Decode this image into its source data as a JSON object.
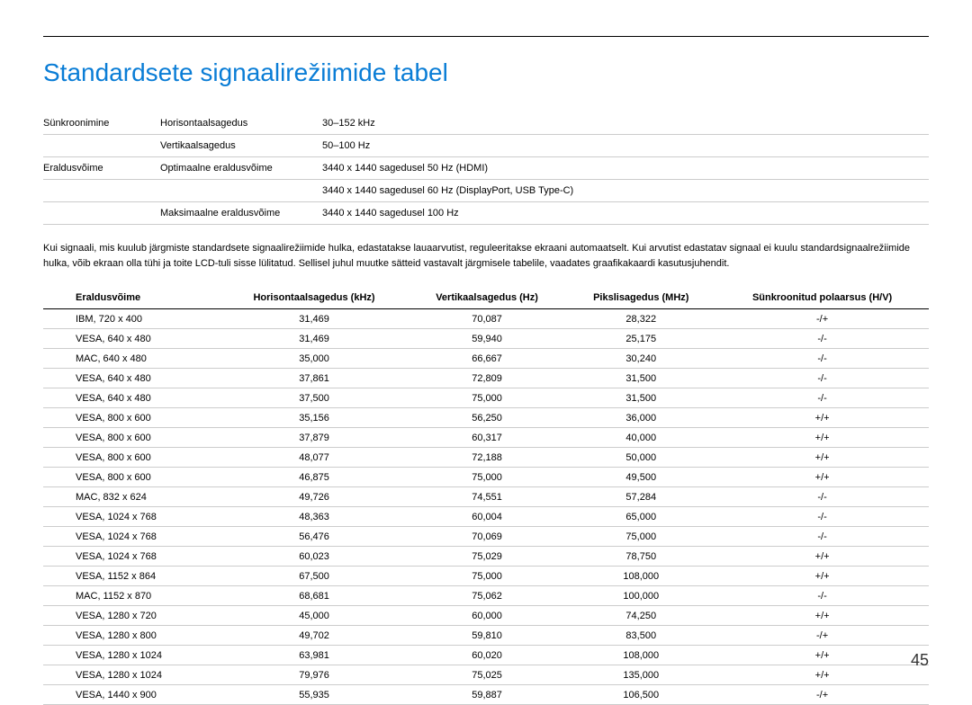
{
  "title": "Standardsete signaalirežiimide tabel",
  "spec": {
    "rows": [
      {
        "c1": "Sünkroonimine",
        "c2": "Horisontaalsagedus",
        "c3": "30–152 kHz"
      },
      {
        "c1": "",
        "c2": "Vertikaalsagedus",
        "c3": "50–100 Hz"
      },
      {
        "c1": "Eraldusvõime",
        "c2": "Optimaalne eraldusvõime",
        "c3": "3440 x 1440 sagedusel 50 Hz (HDMI)"
      },
      {
        "c1": "",
        "c2": "",
        "c3": "3440 x 1440 sagedusel 60 Hz (DisplayPort, USB Type-C)"
      },
      {
        "c1": "",
        "c2": "Maksimaalne eraldusvõime",
        "c3": "3440 x 1440 sagedusel 100 Hz"
      }
    ]
  },
  "note": "Kui signaali, mis kuulub järgmiste standardsete signaalirežiimide hulka, edastatakse lauaarvutist, reguleeritakse ekraani automaatselt. Kui arvutist edastatav signaal ei kuulu standardsignaalrežiimide hulka, võib ekraan olla tühi ja toite LCD-tuli sisse lülitatud. Sellisel juhul muutke sätteid vastavalt järgmisele tabelile, vaadates graafikakaardi kasutusjuhendit.",
  "table": {
    "headers": [
      "Eraldusvõime",
      "Horisontaalsagedus (kHz)",
      "Vertikaalsagedus (Hz)",
      "Pikslisagedus (MHz)",
      "Sünkroonitud polaarsus (H/V)"
    ],
    "rows": [
      [
        "IBM, 720 x 400",
        "31,469",
        "70,087",
        "28,322",
        "-/+"
      ],
      [
        "VESA, 640 x 480",
        "31,469",
        "59,940",
        "25,175",
        "-/-"
      ],
      [
        "MAC, 640 x 480",
        "35,000",
        "66,667",
        "30,240",
        "-/-"
      ],
      [
        "VESA, 640 x 480",
        "37,861",
        "72,809",
        "31,500",
        "-/-"
      ],
      [
        "VESA, 640 x 480",
        "37,500",
        "75,000",
        "31,500",
        "-/-"
      ],
      [
        "VESA, 800 x 600",
        "35,156",
        "56,250",
        "36,000",
        "+/+"
      ],
      [
        "VESA, 800 x 600",
        "37,879",
        "60,317",
        "40,000",
        "+/+"
      ],
      [
        "VESA, 800 x 600",
        "48,077",
        "72,188",
        "50,000",
        "+/+"
      ],
      [
        "VESA, 800 x 600",
        "46,875",
        "75,000",
        "49,500",
        "+/+"
      ],
      [
        "MAC, 832 x 624",
        "49,726",
        "74,551",
        "57,284",
        "-/-"
      ],
      [
        "VESA, 1024 x 768",
        "48,363",
        "60,004",
        "65,000",
        "-/-"
      ],
      [
        "VESA, 1024 x 768",
        "56,476",
        "70,069",
        "75,000",
        "-/-"
      ],
      [
        "VESA, 1024 x 768",
        "60,023",
        "75,029",
        "78,750",
        "+/+"
      ],
      [
        "VESA, 1152 x 864",
        "67,500",
        "75,000",
        "108,000",
        "+/+"
      ],
      [
        "MAC, 1152 x 870",
        "68,681",
        "75,062",
        "100,000",
        "-/-"
      ],
      [
        "VESA, 1280 x 720",
        "45,000",
        "60,000",
        "74,250",
        "+/+"
      ],
      [
        "VESA, 1280 x 800",
        "49,702",
        "59,810",
        "83,500",
        "-/+"
      ],
      [
        "VESA, 1280 x 1024",
        "63,981",
        "60,020",
        "108,000",
        "+/+"
      ],
      [
        "VESA, 1280 x 1024",
        "79,976",
        "75,025",
        "135,000",
        "+/+"
      ],
      [
        "VESA, 1440 x 900",
        "55,935",
        "59,887",
        "106,500",
        "-/+"
      ]
    ]
  },
  "pageNumber": "45"
}
